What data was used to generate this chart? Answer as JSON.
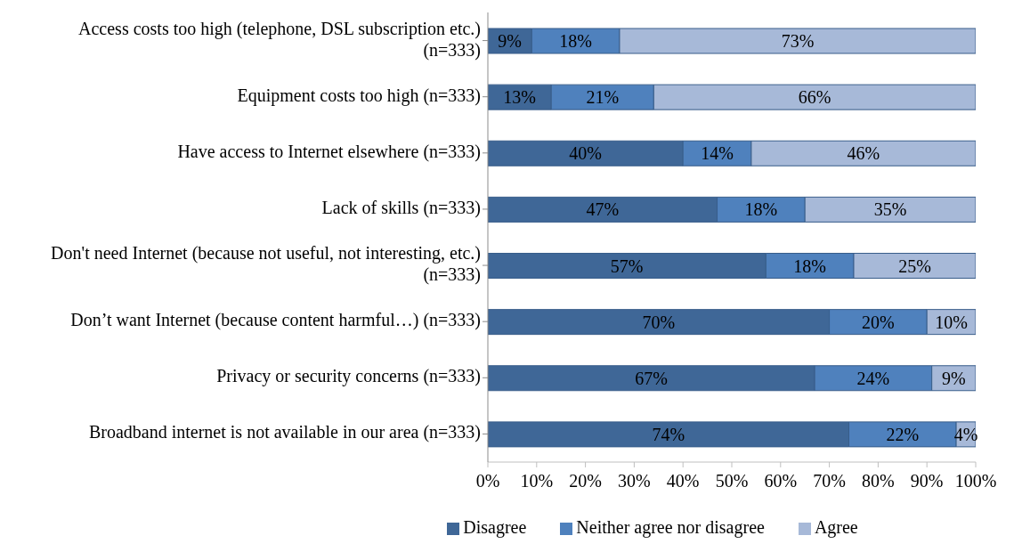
{
  "chart_data": {
    "type": "bar",
    "orientation": "horizontal",
    "stacked": true,
    "categories": [
      "Access costs too high (telephone, DSL subscription etc.) (n=333)",
      "Equipment costs too high (n=333)",
      "Have access to Internet elsewhere (n=333)",
      "Lack of skills (n=333)",
      "Don't need Internet (because not useful, not interesting, etc.) (n=333)",
      "Don’t want Internet (because content harmful…) (n=333)",
      "Privacy or security concerns (n=333)",
      "Broadband internet is not available in our area (n=333)"
    ],
    "series": [
      {
        "name": "Disagree",
        "color": "#3f6797",
        "values": [
          9,
          13,
          40,
          47,
          57,
          70,
          67,
          74
        ],
        "value_labels": [
          "9%",
          "13%",
          "40%",
          "47%",
          "57%",
          "70%",
          "67%",
          "74%"
        ]
      },
      {
        "name": "Neither agree nor disagree",
        "color": "#4f81bd",
        "values": [
          18,
          21,
          14,
          18,
          18,
          20,
          24,
          22
        ],
        "value_labels": [
          "18%",
          "21%",
          "14%",
          "18%",
          "18%",
          "20%",
          "24%",
          "22%"
        ]
      },
      {
        "name": "Agree",
        "color": "#a7b9d8",
        "values": [
          73,
          66,
          46,
          35,
          25,
          10,
          9,
          4
        ],
        "value_labels": [
          "73%",
          "66%",
          "46%",
          "35%",
          "25%",
          "10%",
          "9%",
          "4%"
        ]
      }
    ],
    "xlim": [
      0,
      100
    ],
    "xticks": [
      {
        "value": 0,
        "label": "0%"
      },
      {
        "value": 10,
        "label": "10%"
      },
      {
        "value": 20,
        "label": "20%"
      },
      {
        "value": 30,
        "label": "30%"
      },
      {
        "value": 40,
        "label": "40%"
      },
      {
        "value": 50,
        "label": "50%"
      },
      {
        "value": 60,
        "label": "60%"
      },
      {
        "value": 70,
        "label": "70%"
      },
      {
        "value": 80,
        "label": "80%"
      },
      {
        "value": 90,
        "label": "90%"
      },
      {
        "value": 100,
        "label": "100%"
      }
    ],
    "grid": false,
    "legend": "bottom"
  }
}
